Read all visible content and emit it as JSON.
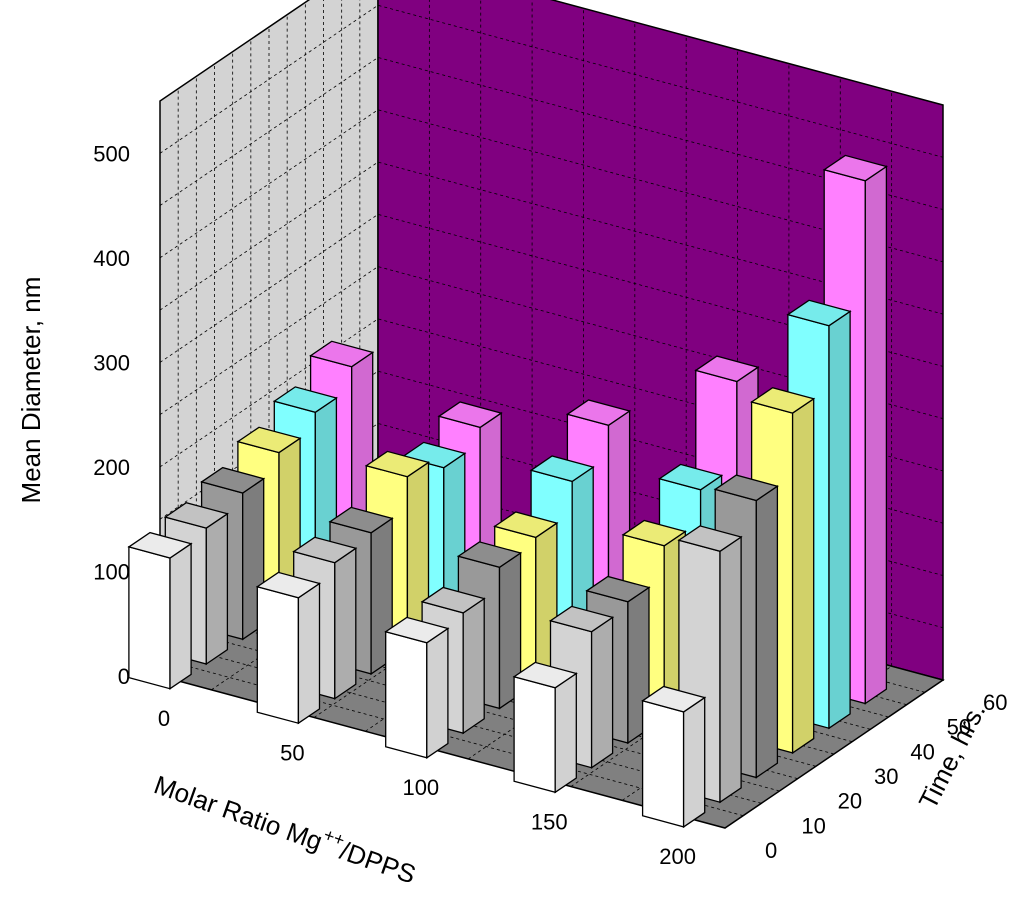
{
  "chart_data": {
    "type": "bar3d",
    "xlabel": "Molar Ratio Mg",
    "xlabel_superscript": "++",
    "xlabel_suffix": "/DPPS",
    "ylabel": "Mean Diameter, nm",
    "zlabel": "Time, hrs.",
    "x_ticks": [
      "0",
      "50",
      "100",
      "150",
      "200"
    ],
    "z_ticks": [
      "0",
      "10",
      "20",
      "30",
      "40",
      "50",
      "60"
    ],
    "y_ticks": [
      "0",
      "100",
      "200",
      "300",
      "400",
      "500"
    ],
    "ylim": [
      0,
      550
    ],
    "xlim": [
      0,
      220
    ],
    "zlim": [
      0,
      60
    ],
    "grid": true,
    "categories": [
      0,
      50,
      100,
      150,
      200
    ],
    "series": [
      {
        "time": 0,
        "color": "#ffffff",
        "values": [
          125,
          120,
          110,
          100,
          110
        ]
      },
      {
        "time": 10,
        "color": "#d3d3d3",
        "values": [
          130,
          130,
          115,
          130,
          240
        ]
      },
      {
        "time": 20,
        "color": "#999999",
        "values": [
          140,
          135,
          135,
          135,
          265
        ]
      },
      {
        "time": 30,
        "color": "#ffff80",
        "values": [
          155,
          165,
          140,
          165,
          325
        ]
      },
      {
        "time": 40,
        "color": "#80ffff",
        "values": [
          170,
          150,
          170,
          195,
          385
        ]
      },
      {
        "time": 50,
        "color": "#ff80ff",
        "values": [
          190,
          165,
          200,
          275,
          500
        ]
      }
    ],
    "colors": {
      "back_wall": "#800080",
      "side_wall": "#d3d3d3",
      "floor": "#808080"
    }
  }
}
